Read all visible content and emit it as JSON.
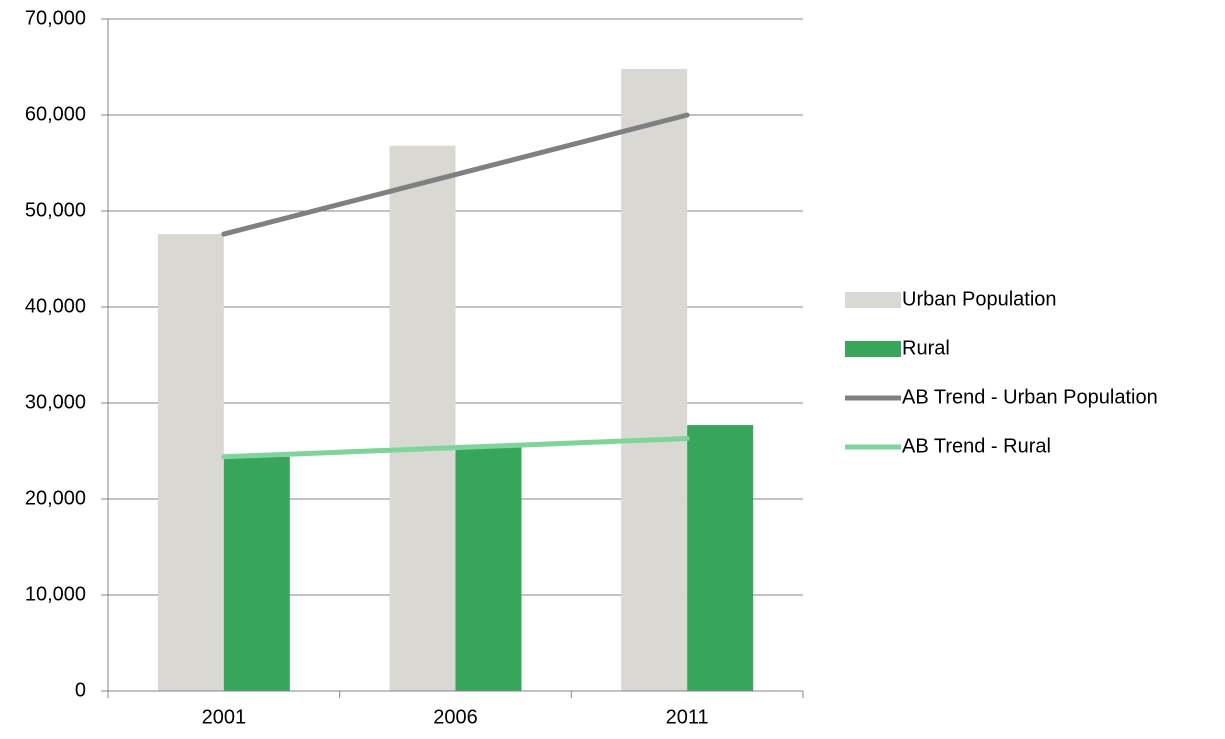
{
  "chart_data": {
    "type": "bar",
    "categories": [
      "2001",
      "2006",
      "2011"
    ],
    "series": [
      {
        "name": "Urban Population",
        "type": "bar",
        "color": "#d9d8d3",
        "values": [
          47600,
          56800,
          64800
        ]
      },
      {
        "name": "Rural",
        "type": "bar",
        "color": "#38a55c",
        "values": [
          24400,
          25500,
          27700
        ]
      },
      {
        "name": "AB Trend - Urban Population",
        "type": "line",
        "color": "#808080",
        "values": [
          47600,
          53800,
          60000
        ]
      },
      {
        "name": "AB Trend - Rural",
        "type": "line",
        "color": "#7fd49b",
        "values": [
          24400,
          25350,
          26300
        ]
      }
    ],
    "ylim": [
      0,
      70000
    ],
    "yticks": [
      0,
      {
        "value": 10000,
        "label": "10,000"
      },
      {
        "value": 20000,
        "label": "20,000"
      },
      {
        "value": 30000,
        "label": "30,000"
      },
      {
        "value": 40000,
        "label": "40,000"
      },
      {
        "value": 50000,
        "label": "50,000"
      },
      {
        "value": 60000,
        "label": "60,000"
      },
      {
        "value": 70000,
        "label": "70,000"
      }
    ],
    "grid": true,
    "legend": "right"
  }
}
